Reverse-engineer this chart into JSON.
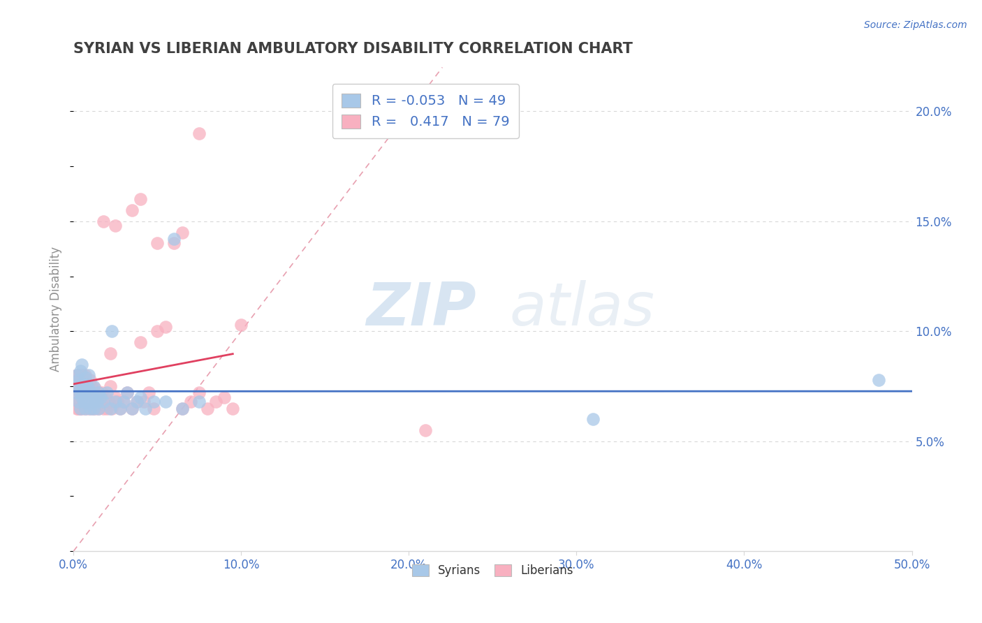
{
  "title": "SYRIAN VS LIBERIAN AMBULATORY DISABILITY CORRELATION CHART",
  "source_text": "Source: ZipAtlas.com",
  "ylabel": "Ambulatory Disability",
  "xlim": [
    0.0,
    0.5
  ],
  "ylim": [
    0.0,
    0.22
  ],
  "xticks": [
    0.0,
    0.1,
    0.2,
    0.3,
    0.4,
    0.5
  ],
  "xticklabels": [
    "0.0%",
    "10.0%",
    "20.0%",
    "30.0%",
    "40.0%",
    "50.0%"
  ],
  "yticks_right": [
    0.05,
    0.1,
    0.15,
    0.2
  ],
  "yticklabels_right": [
    "5.0%",
    "10.0%",
    "15.0%",
    "20.0%"
  ],
  "legend_r_syrian": "-0.053",
  "legend_n_syrian": "49",
  "legend_r_liberian": "0.417",
  "legend_n_liberian": "79",
  "syrian_color": "#a8c8e8",
  "liberian_color": "#f8b0c0",
  "syrian_line_color": "#4472c4",
  "liberian_line_color": "#e04060",
  "diagonal_color": "#e8a0b0",
  "watermark_zip": "ZIP",
  "watermark_atlas": "atlas",
  "background_color": "#ffffff",
  "grid_color": "#d8d8d8",
  "title_color": "#404040",
  "axis_label_color": "#909090",
  "tick_color": "#4472c4",
  "syrians_x": [
    0.001,
    0.002,
    0.002,
    0.003,
    0.003,
    0.004,
    0.004,
    0.004,
    0.005,
    0.005,
    0.005,
    0.006,
    0.006,
    0.007,
    0.007,
    0.007,
    0.008,
    0.008,
    0.009,
    0.009,
    0.01,
    0.01,
    0.011,
    0.012,
    0.012,
    0.013,
    0.014,
    0.015,
    0.015,
    0.016,
    0.018,
    0.02,
    0.022,
    0.023,
    0.025,
    0.028,
    0.03,
    0.032,
    0.035,
    0.038,
    0.04,
    0.043,
    0.048,
    0.055,
    0.06,
    0.065,
    0.075,
    0.48,
    0.31
  ],
  "syrians_y": [
    0.075,
    0.08,
    0.072,
    0.068,
    0.078,
    0.065,
    0.072,
    0.082,
    0.07,
    0.076,
    0.085,
    0.073,
    0.068,
    0.079,
    0.065,
    0.072,
    0.076,
    0.068,
    0.074,
    0.08,
    0.065,
    0.072,
    0.068,
    0.075,
    0.065,
    0.07,
    0.068,
    0.072,
    0.065,
    0.07,
    0.068,
    0.072,
    0.065,
    0.1,
    0.068,
    0.065,
    0.068,
    0.072,
    0.065,
    0.068,
    0.07,
    0.065,
    0.068,
    0.068,
    0.142,
    0.065,
    0.068,
    0.078,
    0.06
  ],
  "liberians_x": [
    0.001,
    0.001,
    0.002,
    0.002,
    0.002,
    0.003,
    0.003,
    0.003,
    0.003,
    0.004,
    0.004,
    0.004,
    0.005,
    0.005,
    0.005,
    0.005,
    0.006,
    0.006,
    0.006,
    0.007,
    0.007,
    0.007,
    0.008,
    0.008,
    0.008,
    0.009,
    0.009,
    0.01,
    0.01,
    0.01,
    0.011,
    0.011,
    0.012,
    0.012,
    0.013,
    0.013,
    0.014,
    0.014,
    0.015,
    0.015,
    0.016,
    0.017,
    0.018,
    0.019,
    0.02,
    0.021,
    0.022,
    0.023,
    0.025,
    0.026,
    0.028,
    0.03,
    0.032,
    0.035,
    0.038,
    0.04,
    0.042,
    0.045,
    0.048,
    0.05,
    0.055,
    0.06,
    0.065,
    0.07,
    0.075,
    0.08,
    0.085,
    0.09,
    0.095,
    0.1,
    0.022,
    0.018,
    0.025,
    0.035,
    0.04,
    0.05,
    0.065,
    0.075,
    0.21
  ],
  "liberians_y": [
    0.07,
    0.075,
    0.078,
    0.065,
    0.08,
    0.073,
    0.065,
    0.08,
    0.068,
    0.075,
    0.072,
    0.065,
    0.078,
    0.07,
    0.065,
    0.08,
    0.072,
    0.068,
    0.075,
    0.07,
    0.065,
    0.08,
    0.072,
    0.068,
    0.075,
    0.07,
    0.065,
    0.078,
    0.072,
    0.068,
    0.074,
    0.065,
    0.07,
    0.068,
    0.074,
    0.065,
    0.07,
    0.068,
    0.072,
    0.065,
    0.068,
    0.072,
    0.065,
    0.07,
    0.065,
    0.068,
    0.075,
    0.065,
    0.07,
    0.068,
    0.065,
    0.068,
    0.072,
    0.065,
    0.068,
    0.095,
    0.068,
    0.072,
    0.065,
    0.1,
    0.102,
    0.14,
    0.065,
    0.068,
    0.072,
    0.065,
    0.068,
    0.07,
    0.065,
    0.103,
    0.09,
    0.15,
    0.148,
    0.155,
    0.16,
    0.14,
    0.145,
    0.19,
    0.055
  ]
}
